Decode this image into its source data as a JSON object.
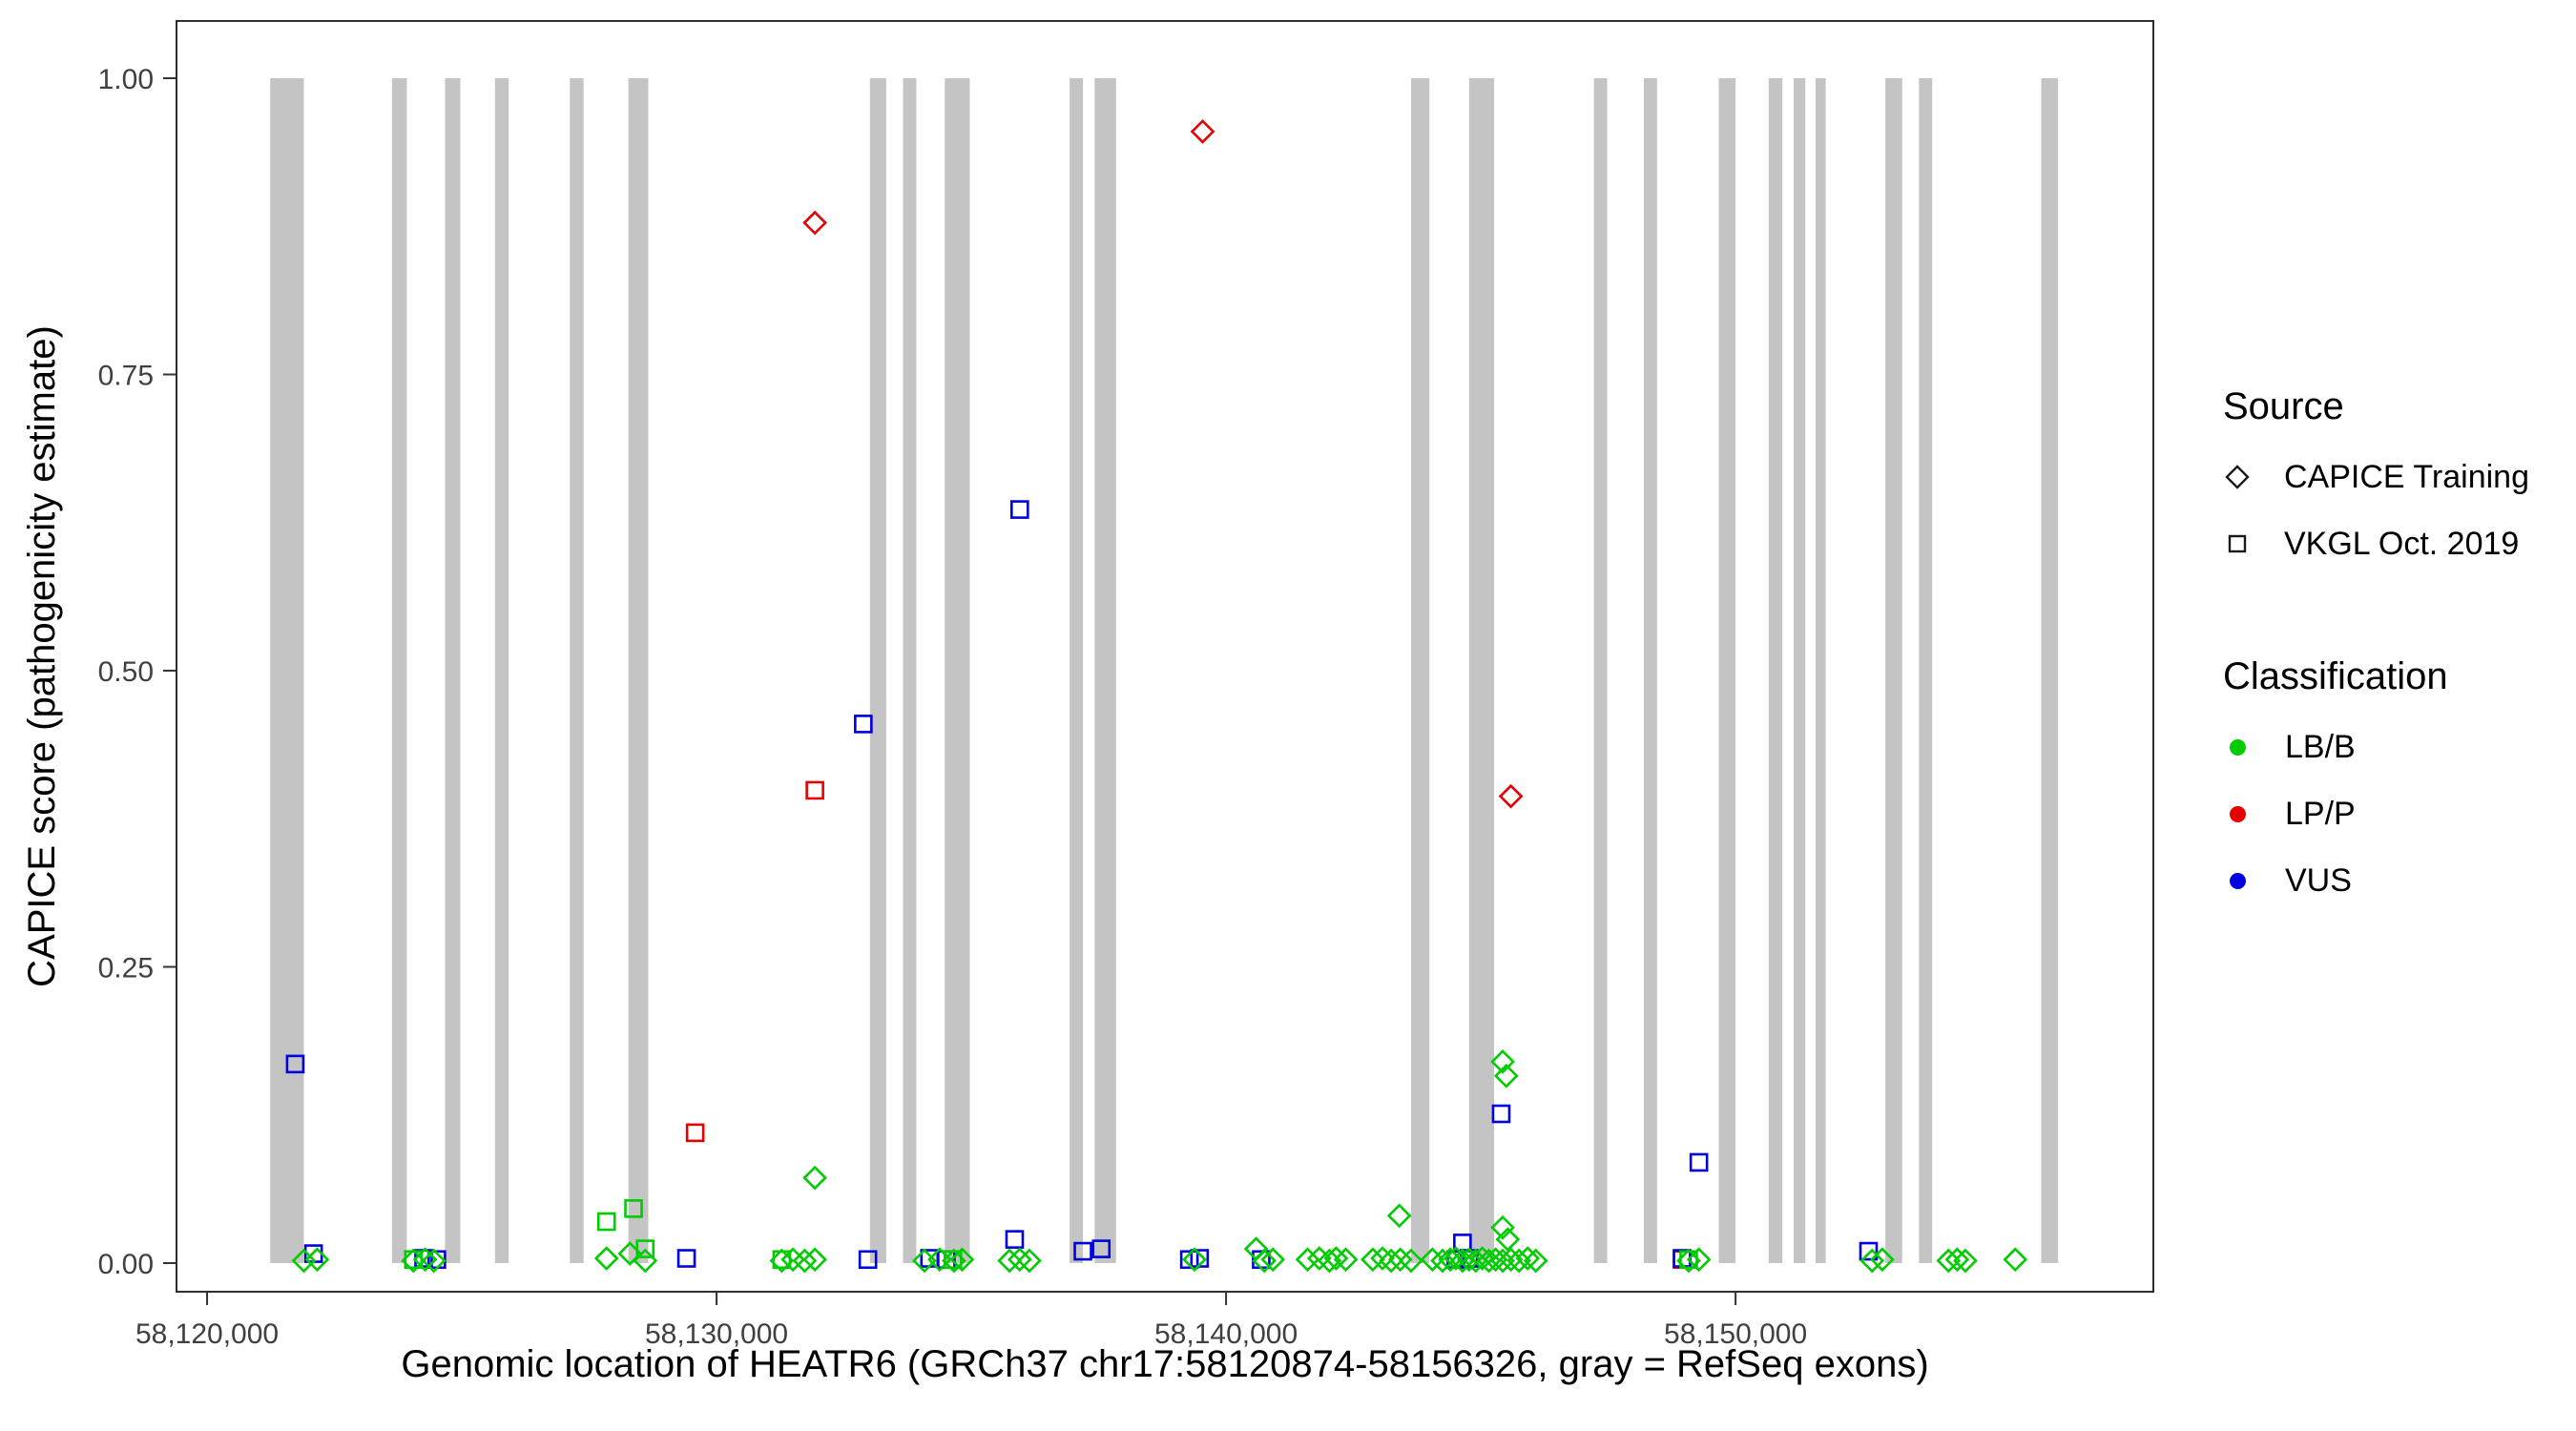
{
  "axes": {
    "x": {
      "label": "Genomic location of HEATR6 (GRCh37 chr17:58120874-58156326, gray = RefSeq exons)",
      "ticks": [
        58120000,
        58130000,
        58140000,
        58150000
      ],
      "tick_labels": [
        "58,120,000",
        "58,130,000",
        "58,140,000",
        "58,150,000"
      ]
    },
    "y": {
      "label": "CAPICE score (pathogenicity estimate)",
      "ticks": [
        0,
        0.25,
        0.5,
        0.75,
        1
      ],
      "tick_labels": [
        "0.00",
        "0.25",
        "0.50",
        "0.75",
        "1.00"
      ]
    }
  },
  "legend": {
    "source": {
      "title": "Source",
      "items": [
        {
          "label": "CAPICE Training",
          "marker": "diamond"
        },
        {
          "label": "VKGL Oct. 2019",
          "marker": "square"
        }
      ]
    },
    "classification": {
      "title": "Classification",
      "items": [
        {
          "label": "LB/B",
          "class_index": 0
        },
        {
          "label": "LP/P",
          "class_index": 1
        },
        {
          "label": "VUS",
          "class_index": 2
        }
      ]
    }
  },
  "chart_data": {
    "type": "scatter",
    "xlim": [
      58119400,
      58158200
    ],
    "ylim": [
      0,
      1
    ],
    "exon_color": "#C4C4C4",
    "panel_border_color": "#2F2F2F",
    "tick_text_color": "#404040",
    "sources": [
      "CAPICE Training",
      "VKGL Oct. 2019"
    ],
    "source_markers": [
      "diamond",
      "square"
    ],
    "classes": [
      "LB/B",
      "LP/P",
      "VUS"
    ],
    "class_colors": [
      "#00CC00",
      "#E60000",
      "#0000E0"
    ],
    "exons": [
      [
        58121240,
        58121900
      ],
      [
        58123630,
        58123920
      ],
      [
        58124670,
        58124970
      ],
      [
        58125650,
        58125920
      ],
      [
        58127120,
        58127390
      ],
      [
        58128270,
        58128660
      ],
      [
        58133010,
        58133330
      ],
      [
        58133660,
        58133920
      ],
      [
        58134480,
        58134970
      ],
      [
        58136930,
        58137190
      ],
      [
        58137420,
        58137840
      ],
      [
        58143630,
        58143990
      ],
      [
        58144770,
        58145260
      ],
      [
        58147220,
        58147480
      ],
      [
        58148200,
        58148460
      ],
      [
        58149670,
        58150000
      ],
      [
        58150650,
        58150920
      ],
      [
        58151140,
        58151370
      ],
      [
        58151570,
        58151770
      ],
      [
        58152940,
        58153270
      ],
      [
        58153600,
        58153860
      ],
      [
        58156000,
        58156330
      ]
    ],
    "point_format": [
      "genomic_position",
      "capice_score",
      "source_index",
      "class_index"
    ],
    "points": [
      [
        58139540,
        0.955,
        0,
        1
      ],
      [
        58131930,
        0.878,
        0,
        1
      ],
      [
        58145590,
        0.394,
        0,
        1
      ],
      [
        58131930,
        0.399,
        1,
        1
      ],
      [
        58129580,
        0.11,
        1,
        1
      ],
      [
        58148950,
        0.003,
        1,
        1
      ],
      [
        58135950,
        0.636,
        1,
        2
      ],
      [
        58132880,
        0.455,
        1,
        2
      ],
      [
        58121730,
        0.168,
        1,
        2
      ],
      [
        58145400,
        0.126,
        1,
        2
      ],
      [
        58149280,
        0.085,
        1,
        2
      ],
      [
        58135850,
        0.02,
        1,
        2
      ],
      [
        58144640,
        0.017,
        1,
        2
      ],
      [
        58137550,
        0.012,
        1,
        2
      ],
      [
        58137190,
        0.01,
        1,
        2
      ],
      [
        58152610,
        0.01,
        1,
        2
      ],
      [
        58122090,
        0.008,
        1,
        2
      ],
      [
        58124250,
        0.004,
        1,
        2
      ],
      [
        58124510,
        0.003,
        1,
        2
      ],
      [
        58129410,
        0.004,
        1,
        2
      ],
      [
        58132970,
        0.003,
        1,
        2
      ],
      [
        58134180,
        0.004,
        1,
        2
      ],
      [
        58134510,
        0.003,
        1,
        2
      ],
      [
        58139280,
        0.003,
        1,
        2
      ],
      [
        58139480,
        0.004,
        1,
        2
      ],
      [
        58140690,
        0.003,
        1,
        2
      ],
      [
        58144510,
        0.003,
        1,
        2
      ],
      [
        58144770,
        0.004,
        1,
        2
      ],
      [
        58148950,
        0.004,
        1,
        2
      ],
      [
        58131930,
        0.072,
        0,
        0
      ],
      [
        58145430,
        0.17,
        0,
        0
      ],
      [
        58145500,
        0.158,
        0,
        0
      ],
      [
        58143400,
        0.04,
        0,
        0
      ],
      [
        58145430,
        0.03,
        0,
        0
      ],
      [
        58145530,
        0.02,
        0,
        0
      ],
      [
        58140590,
        0.012,
        0,
        0
      ],
      [
        58128300,
        0.008,
        0,
        0
      ],
      [
        58127840,
        0.035,
        1,
        0
      ],
      [
        58128370,
        0.046,
        1,
        0
      ],
      [
        58128600,
        0.012,
        1,
        0
      ],
      [
        58124050,
        0.003,
        1,
        0
      ],
      [
        58131280,
        0.003,
        1,
        0
      ],
      [
        58134640,
        0.003,
        1,
        0
      ],
      [
        58149080,
        0.003,
        1,
        0
      ],
      [
        58121900,
        0.002,
        0,
        0
      ],
      [
        58122160,
        0.003,
        0,
        0
      ],
      [
        58124050,
        0.002,
        0,
        0
      ],
      [
        58124280,
        0.003,
        0,
        0
      ],
      [
        58124450,
        0.002,
        0,
        0
      ],
      [
        58127840,
        0.004,
        0,
        0
      ],
      [
        58128600,
        0.002,
        0,
        0
      ],
      [
        58131280,
        0.002,
        0,
        0
      ],
      [
        58131500,
        0.003,
        0,
        0
      ],
      [
        58131730,
        0.002,
        0,
        0
      ],
      [
        58131930,
        0.003,
        0,
        0
      ],
      [
        58134080,
        0.002,
        0,
        0
      ],
      [
        58134380,
        0.003,
        0,
        0
      ],
      [
        58134660,
        0.002,
        0,
        0
      ],
      [
        58134820,
        0.003,
        0,
        0
      ],
      [
        58135750,
        0.002,
        0,
        0
      ],
      [
        58135950,
        0.003,
        0,
        0
      ],
      [
        58136140,
        0.002,
        0,
        0
      ],
      [
        58139380,
        0.003,
        0,
        0
      ],
      [
        58140750,
        0.002,
        0,
        0
      ],
      [
        58140920,
        0.003,
        0,
        0
      ],
      [
        58141600,
        0.003,
        0,
        0
      ],
      [
        58141830,
        0.004,
        0,
        0
      ],
      [
        58142030,
        0.002,
        0,
        0
      ],
      [
        58142160,
        0.004,
        0,
        0
      ],
      [
        58142350,
        0.003,
        0,
        0
      ],
      [
        58142880,
        0.003,
        0,
        0
      ],
      [
        58143070,
        0.004,
        0,
        0
      ],
      [
        58143240,
        0.002,
        0,
        0
      ],
      [
        58143420,
        0.003,
        0,
        0
      ],
      [
        58143630,
        0.002,
        0,
        0
      ],
      [
        58144050,
        0.003,
        0,
        0
      ],
      [
        58144250,
        0.002,
        0,
        0
      ],
      [
        58144400,
        0.003,
        0,
        0
      ],
      [
        58144510,
        0.004,
        0,
        0
      ],
      [
        58144640,
        0.002,
        0,
        0
      ],
      [
        58144770,
        0.003,
        0,
        0
      ],
      [
        58144900,
        0.002,
        0,
        0
      ],
      [
        58145030,
        0.004,
        0,
        0
      ],
      [
        58145160,
        0.002,
        0,
        0
      ],
      [
        58145290,
        0.003,
        0,
        0
      ],
      [
        58145430,
        0.002,
        0,
        0
      ],
      [
        58145590,
        0.003,
        0,
        0
      ],
      [
        58145750,
        0.002,
        0,
        0
      ],
      [
        58145920,
        0.004,
        0,
        0
      ],
      [
        58146080,
        0.002,
        0,
        0
      ],
      [
        58149080,
        0.002,
        0,
        0
      ],
      [
        58149280,
        0.003,
        0,
        0
      ],
      [
        58152680,
        0.002,
        0,
        0
      ],
      [
        58152880,
        0.003,
        0,
        0
      ],
      [
        58154180,
        0.002,
        0,
        0
      ],
      [
        58154350,
        0.003,
        0,
        0
      ],
      [
        58154510,
        0.002,
        0,
        0
      ],
      [
        58155490,
        0.003,
        0,
        0
      ]
    ]
  }
}
